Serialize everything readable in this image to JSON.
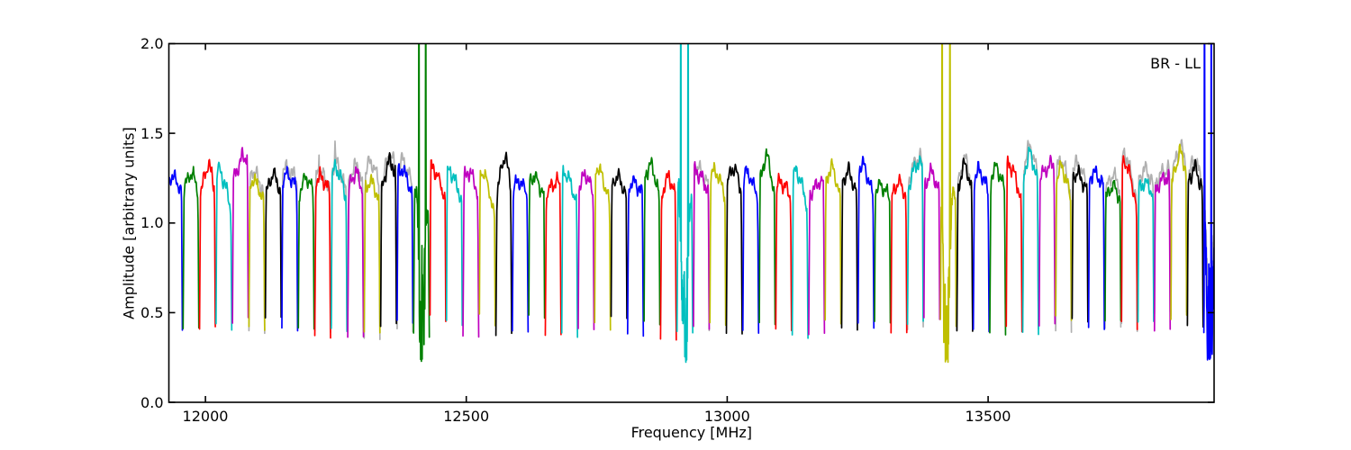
{
  "chart_data": {
    "type": "line",
    "title": "",
    "xlabel": "Frequency [MHz]",
    "ylabel": "Amplitude [arbitrary units]",
    "annotation": "BR - LL",
    "annotation_color": "#000000",
    "xlim": [
      11930,
      13933
    ],
    "ylim": [
      0.0,
      2.0
    ],
    "xticks": [
      12000,
      12500,
      13000,
      13500
    ],
    "yticks": [
      0.0,
      0.5,
      1.0,
      1.5,
      2.0
    ],
    "xtick_labels": [
      "12000",
      "12500",
      "13000",
      "13500"
    ],
    "ytick_labels": [
      "0.0",
      "0.5",
      "1.0",
      "1.5",
      "2.0"
    ],
    "grid": false,
    "legend": false,
    "background_color": "#ffffff",
    "spine_color": "#000000",
    "gray_trace_color": "#b0b0b0",
    "color_cycle": {
      "b": "#0000ff",
      "g": "#008000",
      "r": "#ff0000",
      "c": "#00bfbf",
      "m": "#bf00bf",
      "y": "#bfbf00",
      "k": "#000000"
    },
    "subband_f0_mhz": 11925,
    "subband_width_mhz": 31.55,
    "baseline_level": 0.26,
    "subbands": {
      "fields": [
        "color",
        "peak_amplitude",
        "peak_position",
        "droop",
        "gray_peak",
        "gray_spike_pos"
      ],
      "rows": [
        [
          "b",
          1.26,
          0.35,
          0.93,
          0,
          0
        ],
        [
          "g",
          1.28,
          0.5,
          0.9,
          0,
          0
        ],
        [
          "r",
          1.32,
          0.55,
          0.85,
          0,
          0
        ],
        [
          "c",
          1.3,
          0.2,
          0.8,
          0,
          0
        ],
        [
          "m",
          1.38,
          0.75,
          0.88,
          0,
          0
        ],
        [
          "y",
          1.24,
          0.3,
          0.88,
          1.29,
          0
        ],
        [
          "k",
          1.27,
          0.5,
          0.9,
          0,
          0
        ],
        [
          "b",
          1.27,
          0.3,
          0.93,
          1.31,
          0
        ],
        [
          "g",
          1.26,
          0.5,
          0.9,
          0,
          0
        ],
        [
          "r",
          1.26,
          0.3,
          0.92,
          1.42,
          0.28
        ],
        [
          "c",
          1.31,
          0.3,
          0.85,
          1.45,
          0.25
        ],
        [
          "m",
          1.28,
          0.5,
          0.9,
          1.32,
          0
        ],
        [
          "y",
          1.23,
          0.4,
          0.9,
          1.34,
          0
        ],
        [
          "k",
          1.35,
          0.6,
          0.85,
          1.38,
          0
        ],
        [
          "b",
          1.3,
          0.3,
          0.88,
          1.35,
          0
        ],
        [
          "g",
          1.26,
          0.3,
          0.88,
          0,
          0
        ],
        [
          "r",
          1.31,
          0.15,
          0.85,
          0,
          0
        ],
        [
          "c",
          1.29,
          0.25,
          0.85,
          0,
          0
        ],
        [
          "m",
          1.29,
          0.35,
          0.88,
          0,
          0
        ],
        [
          "y",
          1.29,
          0.2,
          0.78,
          0,
          0
        ],
        [
          "k",
          1.37,
          0.55,
          0.8,
          0,
          0
        ],
        [
          "b",
          1.23,
          0.4,
          0.93,
          0,
          0
        ],
        [
          "g",
          1.26,
          0.3,
          0.9,
          0,
          0
        ],
        [
          "r",
          1.23,
          0.7,
          0.93,
          0,
          0
        ],
        [
          "c",
          1.28,
          0.2,
          0.85,
          0,
          0
        ],
        [
          "m",
          1.27,
          0.45,
          0.9,
          0,
          0
        ],
        [
          "y",
          1.31,
          0.2,
          0.82,
          0,
          0
        ],
        [
          "k",
          1.26,
          0.4,
          0.9,
          0,
          0
        ],
        [
          "b",
          1.23,
          0.35,
          0.93,
          0,
          0
        ],
        [
          "g",
          1.33,
          0.4,
          0.85,
          0,
          0
        ],
        [
          "r",
          1.26,
          0.5,
          0.88,
          0,
          0
        ],
        [
          "c",
          1.31,
          0.25,
          0.88,
          0,
          0
        ],
        [
          "m",
          1.29,
          0.15,
          0.9,
          1.32,
          0
        ],
        [
          "y",
          1.29,
          0.3,
          0.88,
          0,
          0
        ],
        [
          "k",
          1.31,
          0.45,
          0.88,
          0,
          0
        ],
        [
          "b",
          1.28,
          0.25,
          0.88,
          0,
          0
        ],
        [
          "g",
          1.38,
          0.45,
          0.8,
          0,
          0
        ],
        [
          "r",
          1.23,
          0.3,
          0.92,
          0,
          0
        ],
        [
          "c",
          1.29,
          0.25,
          0.82,
          0,
          0
        ],
        [
          "m",
          1.23,
          0.75,
          0.93,
          0,
          0
        ],
        [
          "y",
          1.31,
          0.4,
          0.85,
          0,
          0
        ],
        [
          "k",
          1.29,
          0.4,
          0.88,
          0,
          0
        ],
        [
          "b",
          1.33,
          0.25,
          0.85,
          0,
          0
        ],
        [
          "g",
          1.21,
          0.4,
          0.93,
          0,
          0
        ],
        [
          "r",
          1.23,
          0.5,
          0.92,
          0,
          0
        ],
        [
          "c",
          1.34,
          0.7,
          0.88,
          1.37,
          0
        ],
        [
          "m",
          1.28,
          0.45,
          0.9,
          0,
          0
        ],
        [
          "y",
          1.3,
          0.25,
          0.88,
          0,
          0
        ],
        [
          "k",
          1.33,
          0.5,
          0.85,
          1.36,
          0
        ],
        [
          "b",
          1.29,
          0.35,
          0.9,
          0,
          0
        ],
        [
          "g",
          1.31,
          0.4,
          0.88,
          0,
          0
        ],
        [
          "r",
          1.33,
          0.2,
          0.82,
          0,
          0
        ],
        [
          "c",
          1.39,
          0.45,
          0.85,
          1.43,
          0
        ],
        [
          "m",
          1.33,
          0.8,
          0.93,
          0,
          0
        ],
        [
          "y",
          1.31,
          0.35,
          0.85,
          1.35,
          0
        ],
        [
          "k",
          1.28,
          0.3,
          0.9,
          1.33,
          0
        ],
        [
          "b",
          1.28,
          0.35,
          0.93,
          0,
          0
        ],
        [
          "g",
          1.21,
          0.5,
          0.92,
          1.27,
          0
        ],
        [
          "r",
          1.35,
          0.2,
          0.78,
          1.39,
          0
        ],
        [
          "c",
          1.23,
          0.45,
          0.93,
          1.3,
          0
        ],
        [
          "m",
          1.26,
          0.8,
          0.93,
          1.3,
          0
        ],
        [
          "y",
          1.39,
          0.6,
          0.85,
          1.43,
          0
        ],
        [
          "k",
          1.31,
          0.45,
          0.88,
          1.35,
          0
        ],
        [
          "b",
          1.28,
          0.3,
          0.88,
          1.3,
          0
        ]
      ]
    },
    "anomalies": {
      "15": {
        "dip_bottom": 0.45,
        "dip_center_mhz": 17,
        "dip_halfwidth_mhz": 8,
        "spike_lines_mhz": [
          11,
          24
        ],
        "spike_top": 2.2
      },
      "31": {
        "dip_bottom": 0.33,
        "dip_center_mhz": 15,
        "dip_halfwidth_mhz": 8,
        "spike_lines_mhz": [
          8,
          22
        ],
        "spike_top": 2.2
      },
      "47": {
        "dip_bottom": 0.32,
        "dip_center_mhz": 12,
        "dip_halfwidth_mhz": 8,
        "spike_lines_mhz": [
          4,
          19
        ],
        "spike_top": 2.2
      },
      "63": {
        "dip_bottom": 0.38,
        "dip_center_mhz": 12,
        "dip_halfwidth_mhz": 9,
        "spike_lines_mhz": [
          2,
          15
        ],
        "spike_top": 2.2
      }
    }
  }
}
